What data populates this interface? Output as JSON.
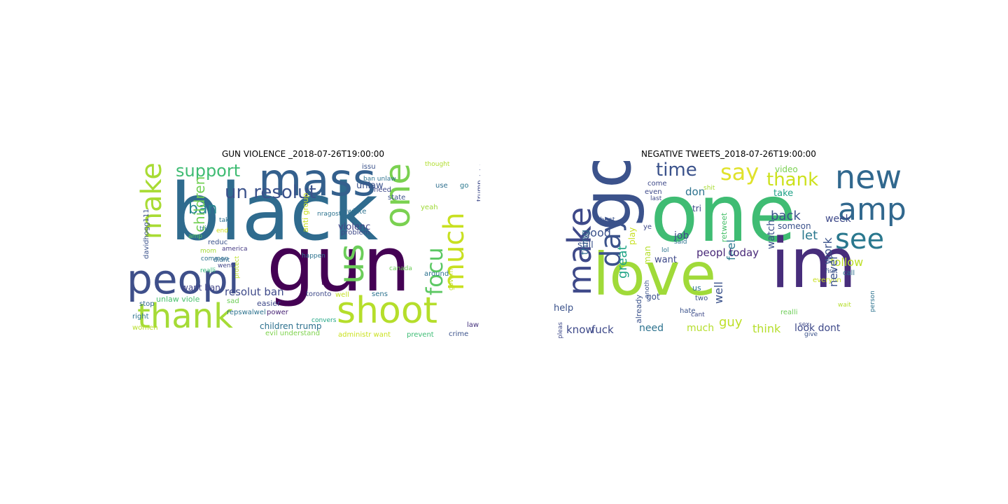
{
  "figure": {
    "panels": [
      {
        "title": "GUN VIOLENCE _2018-07-26T19:00:00",
        "words": [
          {
            "text": "black",
            "color": "#2f6b8e"
          },
          {
            "text": "gun",
            "color": "#440154"
          },
          {
            "text": "mass",
            "color": "#34608d"
          },
          {
            "text": "peopl",
            "color": "#3e4f8a"
          },
          {
            "text": "thank",
            "color": "#a5db36"
          },
          {
            "text": "shoot",
            "color": "#b5de2b"
          },
          {
            "text": "make",
            "color": "#a8db34"
          },
          {
            "text": "us",
            "color": "#6ccd5a"
          },
          {
            "text": "one",
            "color": "#7ad151"
          },
          {
            "text": "much",
            "color": "#c8e020"
          },
          {
            "text": "support",
            "color": "#3fbc73"
          },
          {
            "text": "un resolut",
            "color": "#3b528b"
          },
          {
            "text": "focu",
            "color": "#5cc863"
          },
          {
            "text": "ban",
            "color": "#25858e"
          },
          {
            "text": "children",
            "color": "#73d056"
          },
          {
            "text": "resolut ban",
            "color": "#3e4989"
          },
          {
            "text": "violenc",
            "color": "#414487"
          },
          {
            "text": "unlaw",
            "color": "#3b528b"
          },
          {
            "text": "children trump",
            "color": "#2d708e"
          },
          {
            "text": "want ban",
            "color": "#414487"
          },
          {
            "text": "unlaw viole",
            "color": "#4ac16d"
          },
          {
            "text": "easier",
            "color": "#3e4989"
          },
          {
            "text": "stop",
            "color": "#31688e"
          },
          {
            "text": "right",
            "color": "#2c728e"
          },
          {
            "text": "women",
            "color": "#b8de29"
          },
          {
            "text": "evil understand",
            "color": "#7fd34e"
          },
          {
            "text": "administr want",
            "color": "#cae11f"
          },
          {
            "text": "crime",
            "color": "#3b528b"
          },
          {
            "text": "law",
            "color": "#46337e"
          },
          {
            "text": "prevent",
            "color": "#3dbc74"
          },
          {
            "text": "around",
            "color": "#2c728e"
          },
          {
            "text": "toronto",
            "color": "#3e4989"
          },
          {
            "text": "well",
            "color": "#c2df23"
          },
          {
            "text": "sens",
            "color": "#2c728e"
          },
          {
            "text": "repswalwel",
            "color": "#2c728e"
          },
          {
            "text": "sad",
            "color": "#6ece58"
          },
          {
            "text": "power",
            "color": "#482475"
          },
          {
            "text": "reduc",
            "color": "#3b528b"
          },
          {
            "text": "america",
            "color": "#443983"
          },
          {
            "text": "common",
            "color": "#2c728e"
          },
          {
            "text": "amp",
            "color": "#5ec962"
          },
          {
            "text": "mom",
            "color": "#a2da37"
          },
          {
            "text": "didnt",
            "color": "#31688e"
          },
          {
            "text": "went",
            "color": "#404588"
          },
          {
            "text": "take",
            "color": "#2d708e"
          },
          {
            "text": "realli",
            "color": "#35b779"
          },
          {
            "text": "tri",
            "color": "#2a788e"
          },
          {
            "text": "protect",
            "color": "#bddf26"
          },
          {
            "text": "end",
            "color": "#d0e11c"
          },
          {
            "text": "happen",
            "color": "#2c728e"
          },
          {
            "text": "issu",
            "color": "#3b528b"
          },
          {
            "text": "thought",
            "color": "#b0dd2f"
          },
          {
            "text": "use",
            "color": "#2e6f8e"
          },
          {
            "text": "go",
            "color": "#2a788e"
          },
          {
            "text": "state",
            "color": "#3b528b"
          },
          {
            "text": "need",
            "color": "#3e4989"
          },
          {
            "text": "yeah",
            "color": "#a0da39"
          },
          {
            "text": "white",
            "color": "#2c728e"
          },
          {
            "text": "problem",
            "color": "#3e4989"
          },
          {
            "text": "govern",
            "color": "#c0df25"
          },
          {
            "text": "anti group",
            "color": "#c8e020"
          },
          {
            "text": "trump",
            "color": "#3e4989"
          },
          {
            "text": "administr",
            "color": "#3e4989"
          },
          {
            "text": "davidhogg111",
            "color": "#3b528b"
          },
          {
            "text": "nragost",
            "color": "#2c728e"
          },
          {
            "text": "canada",
            "color": "#6ece58"
          },
          {
            "text": "convers",
            "color": "#21a685"
          },
          {
            "text": "ban unlaw",
            "color": "#2c728e"
          },
          {
            "text": "th",
            "color": "#440154"
          }
        ]
      },
      {
        "title": "NEGATIVE TWEETS_2018-07-26T19:00:00",
        "words": [
          {
            "text": "one",
            "color": "#3fbc73"
          },
          {
            "text": "love",
            "color": "#a0da39"
          },
          {
            "text": "im",
            "color": "#472d7b"
          },
          {
            "text": "go",
            "color": "#3b528b"
          },
          {
            "text": "new",
            "color": "#31688e"
          },
          {
            "text": "amp",
            "color": "#31688e"
          },
          {
            "text": "see",
            "color": "#2a788e"
          },
          {
            "text": "make",
            "color": "#3e4989"
          },
          {
            "text": "day",
            "color": "#3b528b"
          },
          {
            "text": "time",
            "color": "#3b528b"
          },
          {
            "text": "say",
            "color": "#e0e22b"
          },
          {
            "text": "thank",
            "color": "#cde11d"
          },
          {
            "text": "back",
            "color": "#3b528b"
          },
          {
            "text": "week",
            "color": "#3e4989"
          },
          {
            "text": "video",
            "color": "#7ad151"
          },
          {
            "text": "take",
            "color": "#1fa187"
          },
          {
            "text": "someon",
            "color": "#3b528b"
          },
          {
            "text": "don",
            "color": "#2c728e"
          },
          {
            "text": "tri",
            "color": "#3e4989"
          },
          {
            "text": "good",
            "color": "#3b528b"
          },
          {
            "text": "thing",
            "color": "#31688e"
          },
          {
            "text": "job",
            "color": "#3e4989"
          },
          {
            "text": "feel",
            "color": "#2a788e"
          },
          {
            "text": "retweet",
            "color": "#4ac16d"
          },
          {
            "text": "watch",
            "color": "#3b528b"
          },
          {
            "text": "let",
            "color": "#2a788e"
          },
          {
            "text": "follow",
            "color": "#bddf26"
          },
          {
            "text": "everyon",
            "color": "#c8e020"
          },
          {
            "text": "work",
            "color": "#3b528b"
          },
          {
            "text": "never",
            "color": "#3b528b"
          },
          {
            "text": "call",
            "color": "#2c728e"
          },
          {
            "text": "peopl today",
            "color": "#482878"
          },
          {
            "text": "want",
            "color": "#3e4989"
          },
          {
            "text": "still",
            "color": "#3b528b"
          },
          {
            "text": "play",
            "color": "#c8e020"
          },
          {
            "text": "great",
            "color": "#20a486"
          },
          {
            "text": "man",
            "color": "#b5de2b"
          },
          {
            "text": "lol",
            "color": "#2c728e"
          },
          {
            "text": "got",
            "color": "#3b528b"
          },
          {
            "text": "us",
            "color": "#2c728e"
          },
          {
            "text": "well",
            "color": "#3b528b"
          },
          {
            "text": "realli",
            "color": "#6ece58"
          },
          {
            "text": "help",
            "color": "#3b528b"
          },
          {
            "text": "know",
            "color": "#3e4989"
          },
          {
            "text": "fuck",
            "color": "#3e4989"
          },
          {
            "text": "need",
            "color": "#2c728e"
          },
          {
            "text": "guy",
            "color": "#bddf26"
          },
          {
            "text": "much",
            "color": "#b5de2b"
          },
          {
            "text": "think",
            "color": "#b5de2b"
          },
          {
            "text": "look dont",
            "color": "#3e4989"
          },
          {
            "text": "hate",
            "color": "#3b528b"
          },
          {
            "text": "come",
            "color": "#3e4989"
          },
          {
            "text": "best",
            "color": "#3b528b"
          },
          {
            "text": "even",
            "color": "#3e4989"
          },
          {
            "text": "last",
            "color": "#3e4989"
          },
          {
            "text": "ye",
            "color": "#3e4989"
          },
          {
            "text": "two",
            "color": "#3b528b"
          },
          {
            "text": "sex",
            "color": "#3e4989"
          },
          {
            "text": "first",
            "color": "#3b528b"
          },
          {
            "text": "cant",
            "color": "#3e4989"
          },
          {
            "text": "shit",
            "color": "#a8db34"
          },
          {
            "text": "said",
            "color": "#2c728e"
          },
          {
            "text": "person",
            "color": "#2c728e"
          },
          {
            "text": "wait",
            "color": "#b5de2b"
          },
          {
            "text": "give",
            "color": "#3b528b"
          },
          {
            "text": "pleas",
            "color": "#3e4989"
          },
          {
            "text": "already",
            "color": "#3b528b"
          },
          {
            "text": "anoth",
            "color": "#3b528b"
          }
        ]
      }
    ]
  }
}
